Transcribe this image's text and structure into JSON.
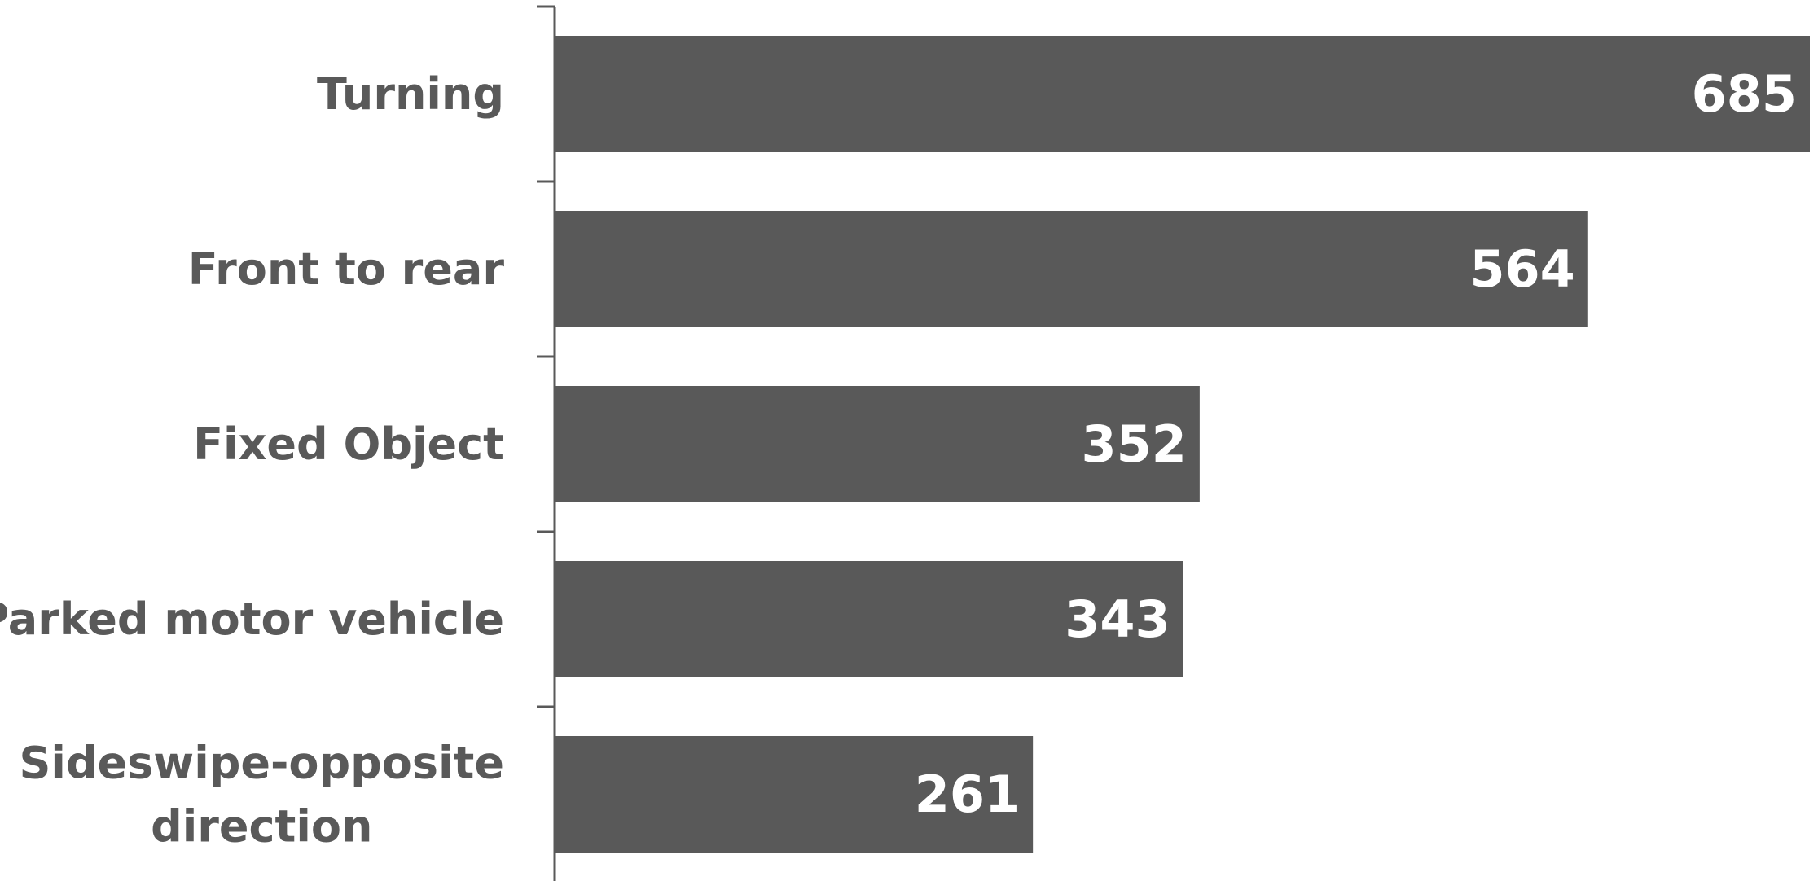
{
  "chart_data": {
    "type": "bar",
    "orientation": "horizontal",
    "categories": [
      "Turning",
      "Front to rear",
      "Fixed Object",
      "Parked motor vehicle",
      "Sideswipe-opposite direction"
    ],
    "values": [
      685,
      564,
      352,
      343,
      261
    ],
    "title": "",
    "xlabel": "",
    "ylabel": "",
    "xlim": [
      0,
      685
    ],
    "grid": false,
    "legend": "none",
    "data_labels": true,
    "bar_color": "#595959",
    "label_color": "#595959",
    "value_label_color": "#ffffff",
    "axis_color": "#595959"
  }
}
